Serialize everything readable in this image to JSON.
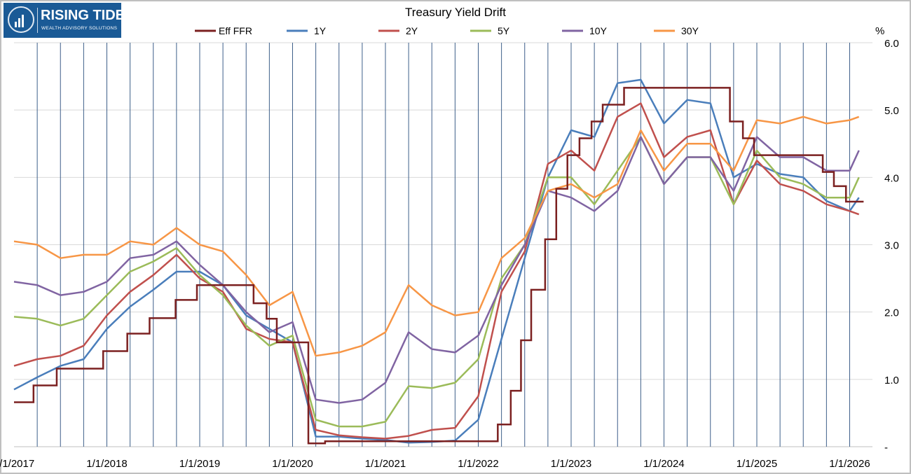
{
  "logo": {
    "name": "RISING TIDE",
    "tagline": "WEALTH ADVISORY SOLUTIONS"
  },
  "chart_data": {
    "type": "line",
    "title": "Treasury Yield Drift",
    "ylabel": "%",
    "ylim": [
      0,
      6
    ],
    "y_ticks": [
      "-",
      "1.0",
      "2.0",
      "3.0",
      "4.0",
      "5.0",
      "6.0"
    ],
    "x_ticks": [
      "1/1/2017",
      "1/1/2018",
      "1/1/2019",
      "1/1/2020",
      "1/1/2021",
      "1/1/2022",
      "1/1/2023",
      "1/1/2024",
      "1/1/2025",
      "1/1/2026"
    ],
    "xlim": [
      2017.0,
      2026.15
    ],
    "legend_position": "top",
    "grid": "horizontal gridlines plus quarterly vertical lines",
    "x": [
      2017.0,
      2017.25,
      2017.5,
      2017.75,
      2018.0,
      2018.25,
      2018.5,
      2018.75,
      2019.0,
      2019.25,
      2019.5,
      2019.75,
      2020.0,
      2020.25,
      2020.5,
      2020.75,
      2021.0,
      2021.25,
      2021.5,
      2021.75,
      2022.0,
      2022.25,
      2022.5,
      2022.75,
      2023.0,
      2023.25,
      2023.5,
      2023.75,
      2024.0,
      2024.25,
      2024.5,
      2024.75,
      2025.0,
      2025.25,
      2025.5,
      2025.75,
      2026.0,
      2026.1
    ],
    "series": [
      {
        "name": "1Y",
        "color": "#4a7ebb",
        "values": [
          0.85,
          1.03,
          1.2,
          1.3,
          1.75,
          2.08,
          2.33,
          2.6,
          2.6,
          2.4,
          1.95,
          1.75,
          1.55,
          0.15,
          0.15,
          0.12,
          0.1,
          0.06,
          0.07,
          0.09,
          0.4,
          1.6,
          2.8,
          4.0,
          4.7,
          4.6,
          5.4,
          5.45,
          4.8,
          5.15,
          5.1,
          4.0,
          4.2,
          4.05,
          4.0,
          3.65,
          3.5,
          3.7
        ]
      },
      {
        "name": "2Y",
        "color": "#c0504d",
        "values": [
          1.2,
          1.3,
          1.35,
          1.5,
          1.95,
          2.3,
          2.55,
          2.85,
          2.5,
          2.3,
          1.75,
          1.6,
          1.55,
          0.25,
          0.17,
          0.14,
          0.12,
          0.16,
          0.25,
          0.28,
          0.75,
          2.3,
          2.9,
          4.2,
          4.4,
          4.1,
          4.9,
          5.1,
          4.3,
          4.6,
          4.7,
          3.6,
          4.25,
          3.9,
          3.8,
          3.6,
          3.5,
          3.45
        ]
      },
      {
        "name": "5Y",
        "color": "#9bbb59",
        "values": [
          1.93,
          1.9,
          1.8,
          1.9,
          2.25,
          2.6,
          2.75,
          2.95,
          2.55,
          2.25,
          1.8,
          1.5,
          1.65,
          0.4,
          0.3,
          0.3,
          0.37,
          0.9,
          0.87,
          0.95,
          1.3,
          2.5,
          3.0,
          4.0,
          4.0,
          3.6,
          4.1,
          4.6,
          3.9,
          4.3,
          4.3,
          3.6,
          4.4,
          4.0,
          3.9,
          3.7,
          3.7,
          4.0
        ]
      },
      {
        "name": "10Y",
        "color": "#8064a2",
        "values": [
          2.45,
          2.4,
          2.25,
          2.3,
          2.45,
          2.8,
          2.85,
          3.05,
          2.7,
          2.4,
          2.0,
          1.7,
          1.85,
          0.7,
          0.65,
          0.7,
          0.95,
          1.7,
          1.45,
          1.4,
          1.65,
          2.4,
          3.0,
          3.8,
          3.7,
          3.5,
          3.8,
          4.6,
          3.9,
          4.3,
          4.3,
          3.8,
          4.6,
          4.3,
          4.3,
          4.1,
          4.1,
          4.4
        ]
      },
      {
        "name": "30Y",
        "color": "#f79646",
        "values": [
          3.05,
          3.0,
          2.8,
          2.85,
          2.85,
          3.05,
          3.0,
          3.25,
          3.0,
          2.9,
          2.55,
          2.1,
          2.3,
          1.35,
          1.4,
          1.5,
          1.7,
          2.4,
          2.1,
          1.95,
          2.0,
          2.8,
          3.1,
          3.8,
          3.9,
          3.7,
          3.9,
          4.7,
          4.1,
          4.5,
          4.5,
          4.1,
          4.85,
          4.8,
          4.9,
          4.8,
          4.85,
          4.9
        ]
      }
    ],
    "step_series": {
      "name": "Eff FFR",
      "color": "#7b2020",
      "steps": [
        [
          2017.0,
          0.66
        ],
        [
          2017.21,
          0.91
        ],
        [
          2017.46,
          1.16
        ],
        [
          2017.96,
          1.42
        ],
        [
          2018.22,
          1.68
        ],
        [
          2018.46,
          1.91
        ],
        [
          2018.74,
          2.18
        ],
        [
          2018.97,
          2.4
        ],
        [
          2019.58,
          2.13
        ],
        [
          2019.72,
          1.9
        ],
        [
          2019.83,
          1.55
        ],
        [
          2020.17,
          0.05
        ],
        [
          2020.35,
          0.08
        ],
        [
          2022.21,
          0.33
        ],
        [
          2022.35,
          0.83
        ],
        [
          2022.46,
          1.58
        ],
        [
          2022.57,
          2.33
        ],
        [
          2022.72,
          3.08
        ],
        [
          2022.84,
          3.83
        ],
        [
          2022.96,
          4.33
        ],
        [
          2023.09,
          4.58
        ],
        [
          2023.22,
          4.83
        ],
        [
          2023.34,
          5.08
        ],
        [
          2023.57,
          5.33
        ],
        [
          2024.71,
          4.83
        ],
        [
          2024.85,
          4.58
        ],
        [
          2024.97,
          4.33
        ],
        [
          2025.71,
          4.08
        ],
        [
          2025.83,
          3.87
        ],
        [
          2025.96,
          3.64
        ],
        [
          2026.15,
          3.64
        ]
      ]
    }
  }
}
